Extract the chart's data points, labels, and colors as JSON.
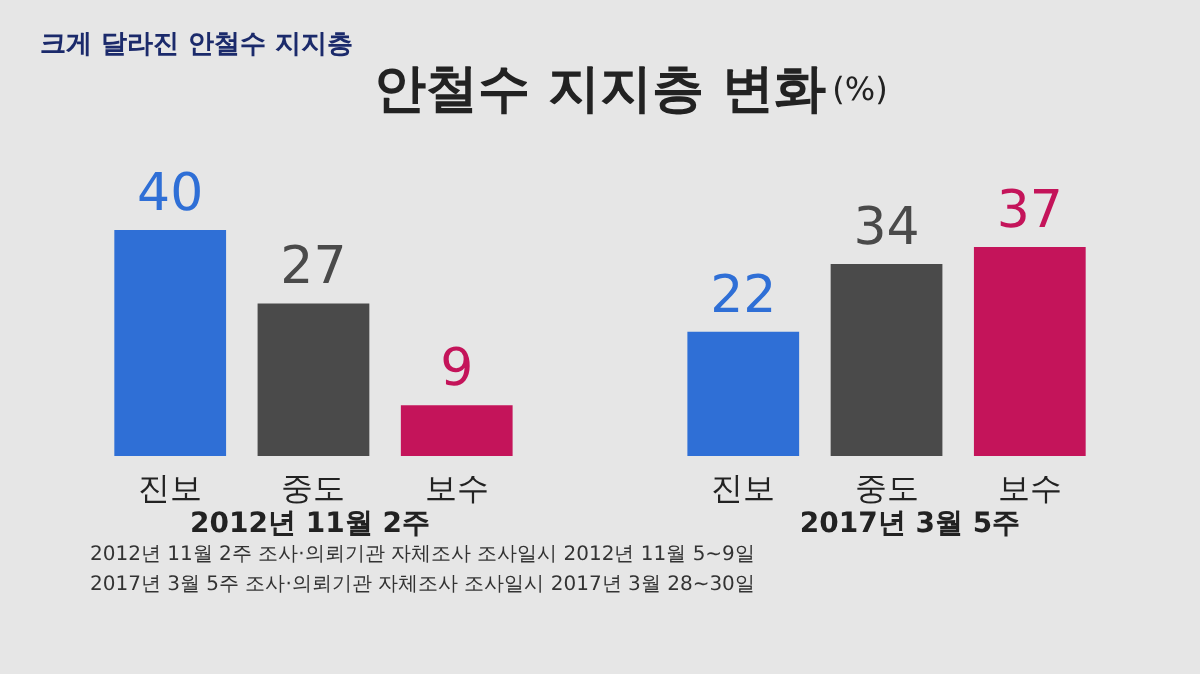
{
  "chart_data": {
    "type": "bar",
    "title": "안철수 지지층 변화",
    "ylabel": "(%)",
    "categories": [
      "진보",
      "중도",
      "보수",
      "진보",
      "중도",
      "보수"
    ],
    "values": [
      40,
      27,
      9,
      22,
      34,
      37
    ],
    "colors": [
      "#2f6fd6",
      "#4a4a4a",
      "#c4145a",
      "#2f6fd6",
      "#4a4a4a",
      "#c4145a"
    ],
    "data_labels": true,
    "grid": false,
    "annotations": [
      "크게 달라진 안철수 지지층",
      "2012년 11월 2주",
      "2017년 3월 5주",
      "2012년 11월 2주  조사·의뢰기관  자체조사  조사일시  2012년 11월 5~9일",
      "2017년 3월 5주  조사·의뢰기관  자체조사  조사일시  2017년 3월 28~30일"
    ]
  }
}
